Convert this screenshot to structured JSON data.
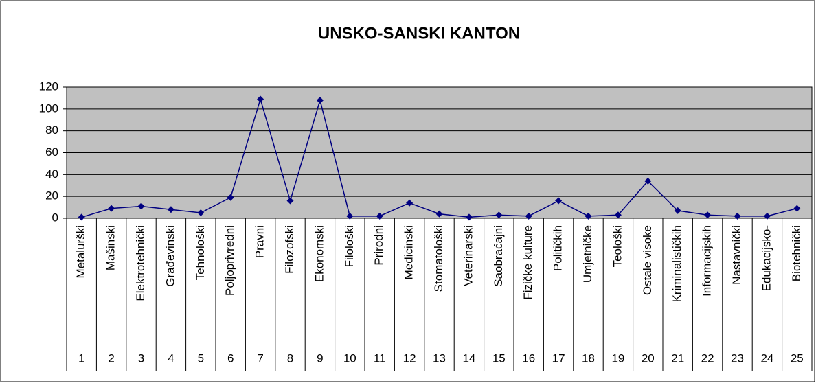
{
  "chart_data": {
    "type": "line",
    "title": "UNSKO-SANSKI KANTON",
    "categories": [
      "Metalurški",
      "Mašinski",
      "Elektrotehnički",
      "Građevinski",
      "Tehnološki",
      "Poljoprivredni",
      "Pravni",
      "Filozofski",
      "Ekonomski",
      "Filološki",
      "Prirodni",
      "Medicinski",
      "Stomatološki",
      "Veterinarski",
      "Saobraćajni",
      "Fizičke kulture",
      "Političkih",
      "Umjetničke",
      "Teološki",
      "Ostale visoke",
      "Kriminalističkih",
      "Informacijskih",
      "Nastavnički",
      "Edukacijsko-",
      "Biotehnički"
    ],
    "category_numbers": [
      1,
      2,
      3,
      4,
      5,
      6,
      7,
      8,
      9,
      10,
      11,
      12,
      13,
      14,
      15,
      16,
      17,
      18,
      19,
      20,
      21,
      22,
      23,
      24,
      25
    ],
    "series": [
      {
        "color": "#000080",
        "values": [
          1,
          9,
          11,
          8,
          5,
          19,
          109,
          16,
          108,
          2,
          2,
          14,
          4,
          1,
          3,
          2,
          16,
          2,
          3,
          34,
          7,
          3,
          2,
          2,
          9
        ]
      }
    ],
    "ylim": [
      0,
      120
    ],
    "yticks": [
      0,
      20,
      40,
      60,
      80,
      100,
      120
    ],
    "grid": true,
    "plot_background": "#c0c0c0"
  }
}
